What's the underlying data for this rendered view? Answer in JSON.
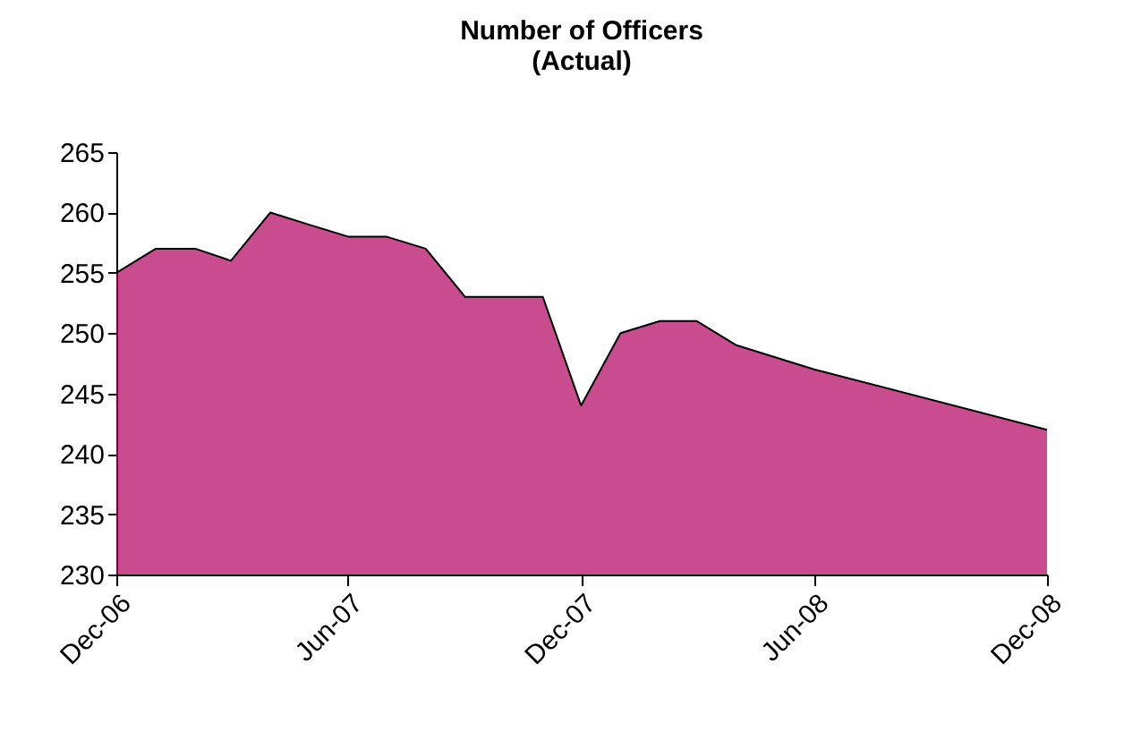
{
  "chart_data": {
    "type": "area",
    "title": "Number of Officers",
    "subtitle": "(Actual)",
    "x": [
      "2006-12",
      "2007-01",
      "2007-02",
      "2007-03",
      "2007-04",
      "2007-05",
      "2007-06",
      "2007-07",
      "2007-08",
      "2007-09",
      "2007-10",
      "2007-11",
      "2007-12",
      "2008-01",
      "2008-02",
      "2008-03",
      "2008-04",
      "2008-06",
      "2008-12"
    ],
    "series": [
      {
        "color": "#b0005e",
        "values": [
          255,
          257,
          257,
          256,
          260,
          259,
          258,
          258,
          257,
          253,
          253,
          253,
          244,
          250,
          251,
          251,
          249,
          247,
          242
        ]
      }
    ],
    "xlim": [
      "2006-12",
      "2008-12"
    ],
    "xticks": [
      {
        "value": "2006-12",
        "label": "Dec-06"
      },
      {
        "value": "2007-06",
        "label": "Jun-07"
      },
      {
        "value": "2007-12",
        "label": "Dec-07"
      },
      {
        "value": "2008-06",
        "label": "Jun-08"
      },
      {
        "value": "2008-12",
        "label": "Dec-08"
      }
    ],
    "ylim": [
      230,
      265
    ],
    "yticks": [
      230,
      235,
      240,
      245,
      250,
      255,
      260,
      265
    ],
    "grid": false
  }
}
